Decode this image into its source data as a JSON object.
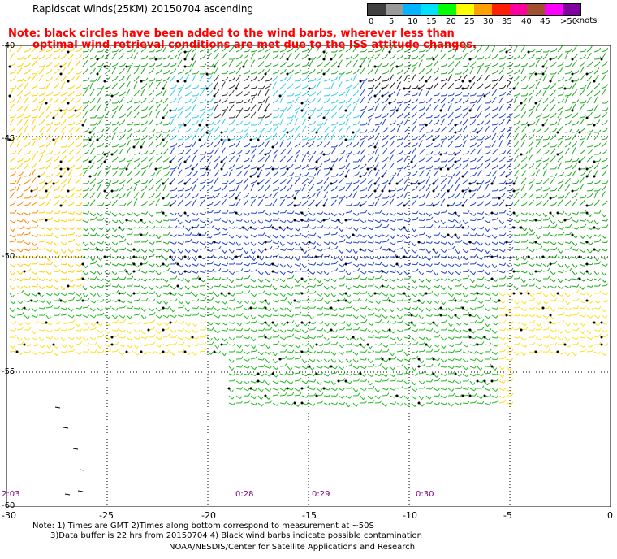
{
  "header": {
    "title": "Rapidscat Winds(25KM) 20150704 ascending",
    "note_line1": "Note: black circles have been added to the wind barbs, wherever less than",
    "note_line2": "optimal wind retrieval conditions are met due to the ISS attitude changes."
  },
  "legend": {
    "colors": [
      "#000000",
      "#808080",
      "#00c8ff",
      "#00e8ff",
      "#00ff00",
      "#ffff00",
      "#ffa000",
      "#ff0000",
      "#ff00ff",
      "#c000c0",
      "#a000ff",
      "#8000a0"
    ],
    "labels": [
      "0",
      "5",
      "10",
      "15",
      "20",
      "25",
      "30",
      "35",
      "40",
      "45",
      ">50"
    ],
    "units": "knots"
  },
  "axes": {
    "lat_labels": [
      "-40",
      "-45",
      "-50",
      "-55",
      "-60"
    ],
    "lon_labels": [
      "-30",
      "-25",
      "-20",
      "-15",
      "-10",
      "-5",
      "0"
    ]
  },
  "times": [
    "2:03",
    "0:28",
    "0:29",
    "0:30"
  ],
  "footer": {
    "line1": "Note: 1) Times are GMT 2)Times along bottom correspond to measurement at ~50S",
    "line2": "3)Data buffer is 22 hrs from 20150704 4) Black wind barbs indicate possible contamination",
    "line3": "NOAA/NESDIS/Center for Satellite Applications and Research"
  }
}
